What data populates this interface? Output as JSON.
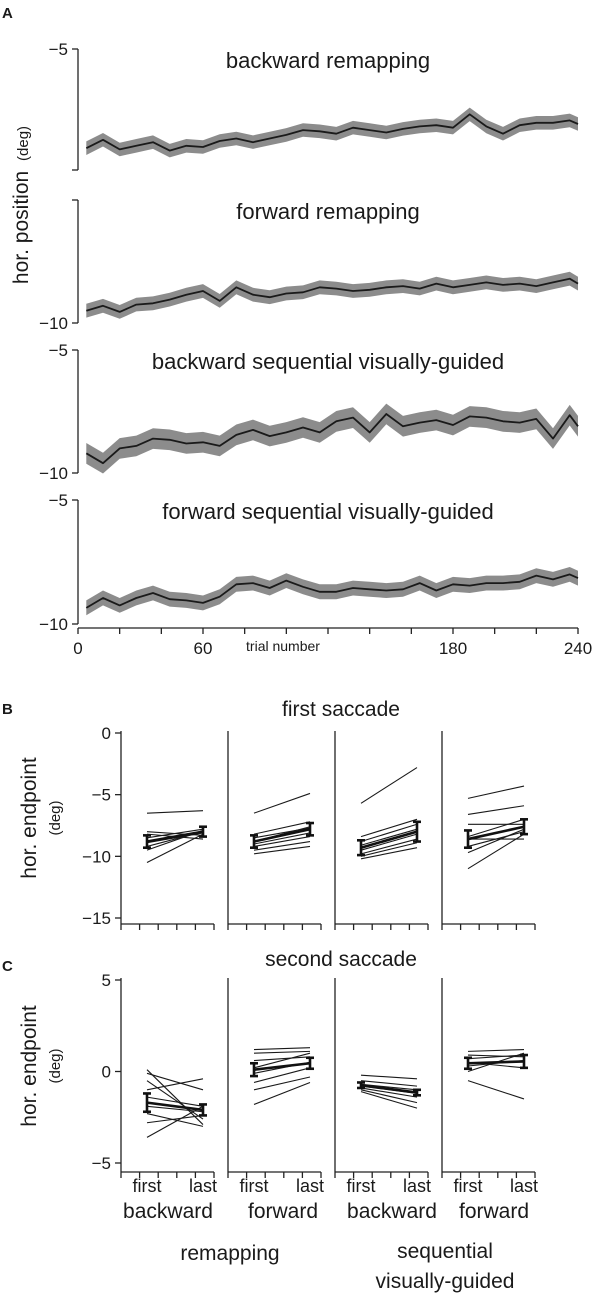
{
  "panels": {
    "a": "A",
    "b": "B",
    "c": "C"
  },
  "panel_a": {
    "ylabel": "hor. position",
    "ylabel_unit": "(deg)",
    "xlabel": "trial number"
  },
  "panel_b": {
    "title": "first saccade"
  },
  "panel_c": {
    "title": "second saccade"
  },
  "shared_bc": {
    "ylabel": "hor. endpoint",
    "ylabel_unit": "(deg)",
    "first_label": "first",
    "last_label": "last",
    "conditions": [
      {
        "line1": "backward",
        "line2": ""
      },
      {
        "line1": "forward",
        "line2": ""
      },
      {
        "line1": "backward",
        "line2": ""
      },
      {
        "line1": "forward",
        "line2": ""
      }
    ],
    "group_labels": [
      {
        "line1": "remapping",
        "line2": ""
      },
      {
        "line1": "sequential",
        "line2": "visually-guided"
      }
    ]
  },
  "chart_data": [
    {
      "panel": "A",
      "subplot": 1,
      "type": "line",
      "title": "backward remapping",
      "ylim": [
        -10,
        -5
      ],
      "xlim": [
        0,
        240
      ],
      "ytick_labels": [
        "−5",
        ""
      ],
      "x": [
        4,
        12,
        20,
        28,
        36,
        44,
        52,
        60,
        68,
        76,
        84,
        92,
        100,
        108,
        116,
        124,
        132,
        140,
        148,
        156,
        164,
        172,
        180,
        188,
        196,
        204,
        212,
        220,
        228,
        236,
        240
      ],
      "values": [
        -9.1,
        -8.75,
        -9.15,
        -9.0,
        -8.85,
        -9.2,
        -9.0,
        -9.05,
        -8.8,
        -8.7,
        -8.85,
        -8.7,
        -8.55,
        -8.35,
        -8.4,
        -8.5,
        -8.25,
        -8.35,
        -8.45,
        -8.3,
        -8.2,
        -8.15,
        -8.25,
        -7.7,
        -8.2,
        -8.5,
        -8.15,
        -8.05,
        -8.05,
        -7.95,
        -8.1
      ],
      "band": 0.28
    },
    {
      "panel": "A",
      "subplot": 2,
      "type": "line",
      "title": "forward remapping",
      "ylim": [
        -10,
        -5
      ],
      "xlim": [
        0,
        240
      ],
      "ytick_labels": [
        "",
        "−10"
      ],
      "x": [
        4,
        12,
        20,
        28,
        36,
        44,
        52,
        60,
        68,
        76,
        84,
        92,
        100,
        108,
        116,
        124,
        132,
        140,
        148,
        156,
        164,
        172,
        180,
        188,
        196,
        204,
        212,
        220,
        228,
        236,
        240
      ],
      "values": [
        -9.5,
        -9.3,
        -9.55,
        -9.25,
        -9.2,
        -9.05,
        -8.85,
        -8.7,
        -9.1,
        -8.55,
        -8.85,
        -8.95,
        -8.8,
        -8.75,
        -8.55,
        -8.6,
        -8.7,
        -8.65,
        -8.55,
        -8.5,
        -8.6,
        -8.4,
        -8.55,
        -8.45,
        -8.35,
        -8.45,
        -8.4,
        -8.5,
        -8.35,
        -8.2,
        -8.4
      ],
      "band": 0.28
    },
    {
      "panel": "A",
      "subplot": 3,
      "type": "line",
      "title": "backward sequential visually-guided",
      "ylim": [
        -10,
        -5
      ],
      "xlim": [
        0,
        240
      ],
      "ytick_labels": [
        "−5",
        "−10"
      ],
      "x": [
        4,
        12,
        20,
        28,
        36,
        44,
        52,
        60,
        68,
        76,
        84,
        92,
        100,
        108,
        116,
        124,
        132,
        140,
        148,
        156,
        164,
        172,
        180,
        188,
        196,
        204,
        212,
        220,
        228,
        236,
        240
      ],
      "values": [
        -9.2,
        -9.6,
        -9.0,
        -8.9,
        -8.6,
        -8.65,
        -8.8,
        -8.75,
        -8.9,
        -8.45,
        -8.25,
        -8.5,
        -8.35,
        -8.15,
        -8.35,
        -7.9,
        -7.75,
        -8.35,
        -7.6,
        -8.1,
        -7.95,
        -7.85,
        -8.05,
        -7.7,
        -7.75,
        -7.9,
        -7.95,
        -7.8,
        -8.6,
        -7.65,
        -8.1
      ],
      "band": 0.42
    },
    {
      "panel": "A",
      "subplot": 4,
      "type": "line",
      "title": "forward sequential visually-guided",
      "ylim": [
        -10,
        -5
      ],
      "xlim": [
        0,
        240
      ],
      "ytick_labels": [
        "−5",
        "−10"
      ],
      "x": [
        4,
        12,
        20,
        28,
        36,
        44,
        52,
        60,
        68,
        76,
        84,
        92,
        100,
        108,
        116,
        124,
        132,
        140,
        148,
        156,
        164,
        172,
        180,
        188,
        196,
        204,
        212,
        220,
        228,
        236,
        240
      ],
      "values": [
        -9.35,
        -8.95,
        -9.25,
        -8.95,
        -8.75,
        -9.0,
        -9.05,
        -9.15,
        -8.9,
        -8.4,
        -8.35,
        -8.55,
        -8.25,
        -8.5,
        -8.7,
        -8.7,
        -8.55,
        -8.6,
        -8.65,
        -8.6,
        -8.35,
        -8.65,
        -8.4,
        -8.45,
        -8.35,
        -8.35,
        -8.3,
        -8.05,
        -8.2,
        -8.0,
        -8.15
      ],
      "band": 0.3
    },
    {
      "panel": "A",
      "type": "axis",
      "xlabel": "trial number",
      "xticks": [
        0,
        60,
        180,
        240
      ],
      "xtick_labels": [
        "0",
        "60",
        "180",
        "240"
      ]
    },
    {
      "panel": "B",
      "type": "scatter",
      "title": "first saccade",
      "ylabel": "hor. endpoint",
      "ylim": [
        -15,
        0
      ],
      "yticks": [
        0,
        -5,
        -10,
        -15
      ],
      "ytick_labels": [
        "0",
        "−5",
        "−10",
        "−15"
      ],
      "categories": [
        "first",
        "last"
      ],
      "series": [
        {
          "condition": "backward remapping",
          "mean": [
            -8.8,
            -8.0
          ],
          "err": [
            0.5,
            0.4
          ],
          "subjects": [
            [
              -6.5,
              -6.3
            ],
            [
              -8.0,
              -8.3
            ],
            [
              -8.5,
              -7.8
            ],
            [
              -8.9,
              -8.1
            ],
            [
              -9.2,
              -8.0
            ],
            [
              -9.5,
              -7.9
            ],
            [
              -10.5,
              -8.2
            ],
            [
              -8.2,
              -8.6
            ]
          ]
        },
        {
          "condition": "forward remapping",
          "mean": [
            -8.8,
            -7.8
          ],
          "err": [
            0.5,
            0.5
          ],
          "subjects": [
            [
              -6.5,
              -4.9
            ],
            [
              -8.2,
              -7.2
            ],
            [
              -8.5,
              -7.7
            ],
            [
              -8.8,
              -7.6
            ],
            [
              -9.0,
              -8.1
            ],
            [
              -9.2,
              -8.4
            ],
            [
              -9.5,
              -8.8
            ],
            [
              -9.8,
              -9.2
            ]
          ]
        },
        {
          "condition": "backward sequential visually-guided",
          "mean": [
            -9.3,
            -8.0
          ],
          "err": [
            0.6,
            0.8
          ],
          "subjects": [
            [
              -5.7,
              -2.8
            ],
            [
              -8.4,
              -7.0
            ],
            [
              -8.8,
              -7.4
            ],
            [
              -9.1,
              -7.8
            ],
            [
              -9.5,
              -8.2
            ],
            [
              -9.8,
              -8.6
            ],
            [
              -10.0,
              -8.9
            ],
            [
              -10.2,
              -9.3
            ]
          ]
        },
        {
          "condition": "forward sequential visually-guided",
          "mean": [
            -8.6,
            -7.6
          ],
          "err": [
            0.7,
            0.6
          ],
          "subjects": [
            [
              -5.3,
              -4.3
            ],
            [
              -6.6,
              -5.9
            ],
            [
              -7.4,
              -7.4
            ],
            [
              -8.4,
              -7.0
            ],
            [
              -8.6,
              -8.6
            ],
            [
              -9.2,
              -8.0
            ],
            [
              -9.7,
              -7.8
            ],
            [
              -11.0,
              -8.2
            ]
          ]
        }
      ]
    },
    {
      "panel": "C",
      "type": "scatter",
      "title": "second saccade",
      "ylabel": "hor. endpoint",
      "ylim": [
        -5,
        5
      ],
      "yticks": [
        5,
        0,
        -5
      ],
      "ytick_labels": [
        "5",
        "0",
        "−5"
      ],
      "categories": [
        "first",
        "last"
      ],
      "series": [
        {
          "condition": "backward remapping",
          "mean": [
            -1.7,
            -2.1
          ],
          "err": [
            0.5,
            0.3
          ],
          "subjects": [
            [
              0.1,
              -2.9
            ],
            [
              -0.1,
              -1.0
            ],
            [
              -0.5,
              -2.6
            ],
            [
              -1.0,
              -0.4
            ],
            [
              -1.4,
              -1.9
            ],
            [
              -1.9,
              -2.2
            ],
            [
              -2.3,
              -3.0
            ],
            [
              -2.8,
              -2.4
            ],
            [
              -3.6,
              -1.9
            ]
          ]
        },
        {
          "condition": "forward remapping",
          "mean": [
            0.1,
            0.45
          ],
          "err": [
            0.35,
            0.3
          ],
          "subjects": [
            [
              1.2,
              1.3
            ],
            [
              1.0,
              1.1
            ],
            [
              0.6,
              0.8
            ],
            [
              0.2,
              1.0
            ],
            [
              -0.1,
              0.5
            ],
            [
              -0.6,
              0.2
            ],
            [
              -1.0,
              -0.3
            ],
            [
              -1.8,
              -0.6
            ]
          ]
        },
        {
          "condition": "backward sequential visually-guided",
          "mean": [
            -0.75,
            -1.15
          ],
          "err": [
            0.15,
            0.15
          ],
          "subjects": [
            [
              -0.2,
              -0.4
            ],
            [
              -0.5,
              -0.8
            ],
            [
              -0.7,
              -1.0
            ],
            [
              -0.8,
              -1.2
            ],
            [
              -0.9,
              -1.4
            ],
            [
              -1.0,
              -1.7
            ],
            [
              -1.1,
              -2.0
            ]
          ]
        },
        {
          "condition": "forward sequential visually-guided",
          "mean": [
            0.45,
            0.55
          ],
          "err": [
            0.3,
            0.35
          ],
          "subjects": [
            [
              1.1,
              1.2
            ],
            [
              0.9,
              0.8
            ],
            [
              0.7,
              0.9
            ],
            [
              0.5,
              0.2
            ],
            [
              0.3,
              0.6
            ],
            [
              0.0,
              1.0
            ],
            [
              -0.5,
              -1.5
            ]
          ]
        }
      ]
    }
  ]
}
